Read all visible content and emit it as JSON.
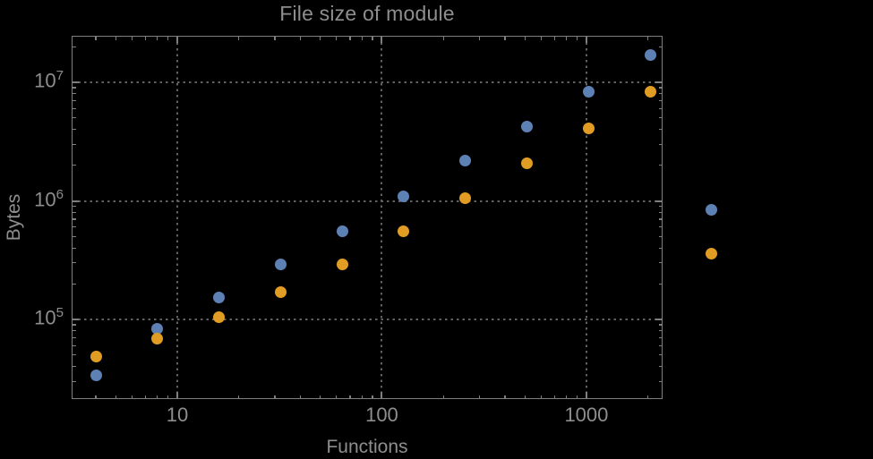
{
  "chart_data": {
    "type": "scatter",
    "title": "File size of module",
    "xlabel": "Functions",
    "ylabel": "Bytes",
    "x_scale": "log",
    "y_scale": "log",
    "grid": "dotted major gridlines",
    "legend": "none",
    "xlog_range": [
      0.488,
      3.368
    ],
    "ylog_range": [
      4.336,
      7.385
    ],
    "x_major_ticks": [
      {
        "value": 10,
        "label": "10"
      },
      {
        "value": 100,
        "label": "100"
      },
      {
        "value": 1000,
        "label": "1000"
      }
    ],
    "y_major_ticks": [
      {
        "value": 100000,
        "base": "10",
        "exp": "5"
      },
      {
        "value": 1000000,
        "base": "10",
        "exp": "6"
      },
      {
        "value": 10000000,
        "base": "10",
        "exp": "7"
      }
    ],
    "x_values": [
      4,
      8,
      16,
      32,
      64,
      128,
      256,
      512,
      1024,
      2048,
      4096
    ],
    "series": [
      {
        "name": "series-1-blue",
        "color": "#5E81B5",
        "y_values": [
          34000,
          84000,
          152000,
          290000,
          550000,
          1100000,
          2200000,
          4200000,
          8400000,
          17000000,
          840000
        ]
      },
      {
        "name": "series-2-orange",
        "color": "#E19C24",
        "y_values": [
          49000,
          69000,
          105000,
          170000,
          290000,
          550000,
          1050000,
          2060000,
          4100000,
          8300000,
          360000
        ]
      }
    ],
    "colors": {
      "background": "#000000",
      "frame": "#7f7f7f",
      "grid": "#616161",
      "text": "#8e8e8e"
    }
  }
}
